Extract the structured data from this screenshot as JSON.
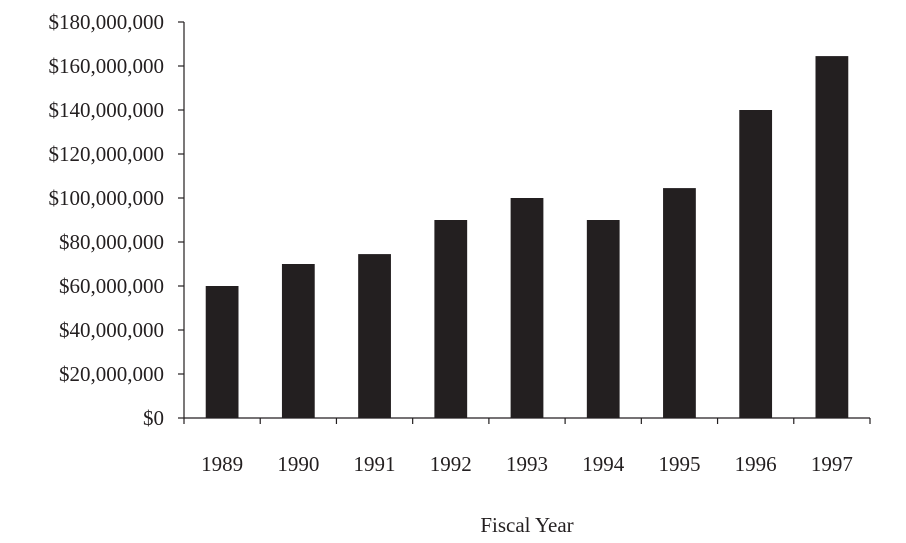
{
  "chart_data": {
    "type": "bar",
    "title": "",
    "xlabel": "Fiscal Year",
    "ylabel": "",
    "categories": [
      "1989",
      "1990",
      "1991",
      "1992",
      "1993",
      "1994",
      "1995",
      "1996",
      "1997"
    ],
    "values": [
      60000000,
      70000000,
      74500000,
      90000000,
      100000000,
      90000000,
      104500000,
      140000000,
      164500000
    ],
    "ylim": [
      0,
      180000000
    ],
    "yticks": [
      0,
      20000000,
      40000000,
      60000000,
      80000000,
      100000000,
      120000000,
      140000000,
      160000000,
      180000000
    ],
    "ytick_labels": [
      "$0",
      "$20,000,000",
      "$40,000,000",
      "$60,000,000",
      "$80,000,000",
      "$100,000,000",
      "$120,000,000",
      "$140,000,000",
      "$160,000,000",
      "$180,000,000"
    ],
    "bar_color": "#231f20",
    "grid": false,
    "legend": "none"
  }
}
